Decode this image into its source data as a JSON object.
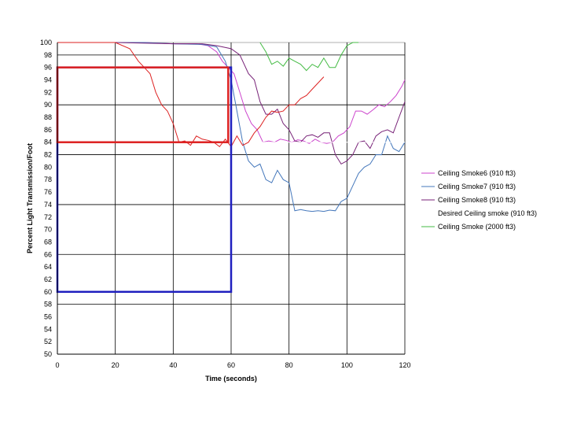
{
  "chart_data": {
    "type": "line",
    "xlabel": "Time (seconds)",
    "ylabel": "Percent Light Transmission/Foot",
    "xlim": [
      0,
      120
    ],
    "ylim": [
      50,
      100
    ],
    "x_ticks": [
      0,
      20,
      40,
      60,
      80,
      100,
      120
    ],
    "y_ticks": [
      50,
      52,
      54,
      56,
      58,
      60,
      62,
      64,
      66,
      68,
      70,
      72,
      74,
      76,
      78,
      80,
      82,
      84,
      86,
      88,
      90,
      92,
      94,
      96,
      98,
      100
    ],
    "grid": true,
    "legend_position": "right",
    "series": [
      {
        "name": "Ceiling Smoke6 (910 ft3)",
        "color": "#cc44cc",
        "x": [
          0,
          10,
          20,
          30,
          40,
          48,
          52,
          55,
          57,
          59,
          61,
          63,
          65,
          67,
          69,
          71,
          73,
          75,
          77,
          79,
          81,
          83,
          85,
          87,
          89,
          91,
          93,
          95,
          97,
          99,
          101,
          103,
          105,
          107,
          109,
          111,
          113,
          115,
          117,
          119,
          120
        ],
        "y": [
          100,
          100,
          100,
          100,
          99.8,
          99.8,
          99.5,
          98.5,
          97,
          96,
          95,
          92,
          89,
          87,
          86,
          84,
          84.2,
          84,
          84.5,
          84.3,
          84,
          84.4,
          84.2,
          83.8,
          84.5,
          84,
          83.8,
          84,
          85,
          85.5,
          86.5,
          89,
          89,
          88.5,
          89.2,
          90,
          89.7,
          90.5,
          91.5,
          93,
          94
        ]
      },
      {
        "name": "Ceiling Smoke7 (910 ft3)",
        "color": "#4477bb",
        "x": [
          0,
          10,
          20,
          30,
          40,
          50,
          55,
          58,
          60,
          62,
          64,
          66,
          68,
          70,
          72,
          74,
          76,
          78,
          80,
          82,
          84,
          86,
          88,
          90,
          92,
          94,
          96,
          98,
          100,
          102,
          104,
          106,
          108,
          110,
          112,
          114,
          116,
          118,
          120
        ],
        "y": [
          100,
          100,
          100,
          100,
          99.8,
          99.7,
          99.3,
          97,
          94,
          89,
          84,
          81,
          80,
          80.5,
          78,
          77.5,
          79.5,
          78,
          77.5,
          73,
          73.2,
          73,
          72.9,
          73,
          72.9,
          73.1,
          73,
          74.5,
          75,
          77,
          79,
          80,
          80.5,
          82,
          82,
          85,
          83,
          82.5,
          84
        ]
      },
      {
        "name": "Ceiling Smoke8 (910 ft3)",
        "color": "#772277",
        "x": [
          0,
          20,
          40,
          50,
          55,
          60,
          63,
          66,
          68,
          70,
          72,
          74,
          76,
          78,
          80,
          82,
          84,
          86,
          88,
          90,
          92,
          94,
          96,
          98,
          100,
          102,
          104,
          106,
          108,
          110,
          112,
          114,
          116,
          118,
          120
        ],
        "y": [
          100,
          100,
          99.8,
          99.8,
          99.5,
          99,
          98,
          95,
          94,
          90.5,
          88.5,
          88.5,
          89.3,
          87,
          86,
          84.2,
          84,
          85,
          85.2,
          84.8,
          85.5,
          85.5,
          82,
          80.5,
          81,
          82,
          84,
          84.2,
          83,
          85,
          85.7,
          86,
          85.5,
          88,
          90.5
        ]
      },
      {
        "name": "Desired Ceiling smoke (910 ft3)",
        "color": "#ffffff",
        "x": [
          0,
          120
        ],
        "y": [
          84,
          84
        ]
      },
      {
        "name": "Ceiling Smoke (2000 ft3)",
        "color": "#44bb44",
        "x": [
          70,
          72,
          74,
          76,
          78,
          80,
          82,
          84,
          86,
          88,
          90,
          92,
          94,
          96,
          98,
          100,
          102,
          104
        ],
        "y": [
          100,
          98.5,
          96.5,
          97,
          96.2,
          97.5,
          97,
          96.5,
          95.5,
          96.5,
          96,
          97.5,
          96,
          96,
          98,
          99.5,
          100,
          100
        ]
      },
      {
        "color": "#dd2222",
        "x": [
          0,
          20,
          25,
          28,
          30,
          32,
          34,
          36,
          38,
          40,
          42,
          44,
          46,
          48,
          50,
          52,
          54,
          56,
          58,
          60,
          62,
          64,
          66,
          68,
          70,
          72,
          74,
          76,
          78,
          80,
          82,
          84,
          86,
          88,
          90,
          92
        ],
        "y": [
          100,
          100,
          99,
          97,
          96,
          95,
          92,
          90,
          89,
          87,
          84,
          84.2,
          83.5,
          85,
          84.5,
          84.3,
          84,
          83.3,
          84.5,
          83.3,
          85,
          83.5,
          84,
          85.5,
          86.5,
          88,
          89,
          88.8,
          89,
          90,
          90,
          91,
          91.5,
          92.5,
          93.5,
          94.5
        ]
      }
    ],
    "boxes": [
      {
        "color": "#1f1fbf",
        "x": [
          0,
          60
        ],
        "y": [
          60,
          96
        ]
      },
      {
        "color": "#dd2222",
        "x": [
          0,
          59
        ],
        "y": [
          84,
          96
        ]
      }
    ]
  }
}
